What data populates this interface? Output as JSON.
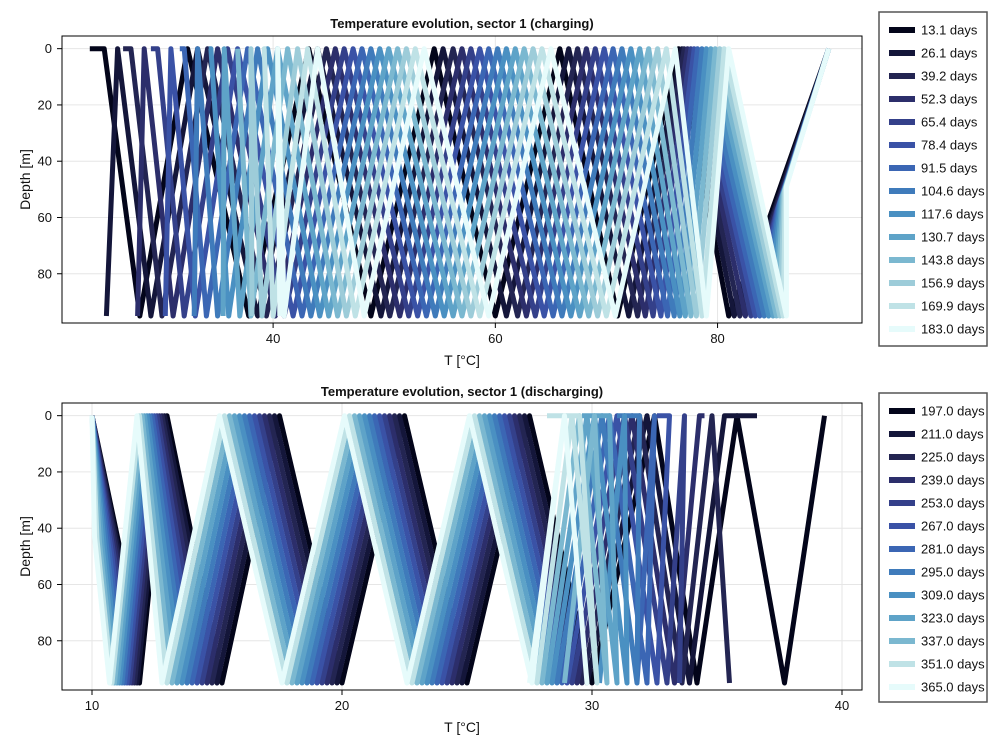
{
  "chart_data": [
    {
      "type": "line",
      "title": "Temperature evolution, sector 1 (charging)",
      "xlabel": "T [°C]",
      "ylabel": "Depth [m]",
      "xlim": [
        21.0,
        93.0
      ],
      "ylim": [
        97.5,
        -4.5
      ],
      "xticks": [
        40,
        60,
        80
      ],
      "yticks": [
        0,
        20,
        40,
        60,
        80
      ],
      "grid": true,
      "legend_position": "outside-right",
      "series": [
        {
          "name": "13.1 days",
          "color": "#03051a",
          "x": [
            90.0,
            84.5,
            81.0,
            76.5,
            71.0,
            65.8,
            60.0,
            54.5,
            48.8,
            43.2,
            37.8,
            32.3,
            28.0,
            24.8,
            23.5
          ],
          "y": [
            0,
            62,
            95,
            0,
            95,
            0,
            95,
            0,
            95,
            0,
            95,
            0,
            95,
            0,
            0
          ]
        },
        {
          "name": "26.1 days",
          "color": "#14163a",
          "x": [
            90.0,
            84.8,
            81.5,
            76.8,
            72.0,
            66.6,
            61.0,
            55.3,
            49.7,
            44.0,
            38.6,
            33.2,
            29.0,
            26.0,
            25.0
          ],
          "y": [
            0,
            61,
            95,
            0,
            95,
            0,
            95,
            0,
            95,
            0,
            95,
            0,
            95,
            0,
            95
          ]
        },
        {
          "name": "39.2 days",
          "color": "#232552",
          "x": [
            90.0,
            85.0,
            82.0,
            77.0,
            72.8,
            67.4,
            62.0,
            56.2,
            50.5,
            44.8,
            39.4,
            34.1,
            30.0,
            27.2,
            26.5
          ],
          "y": [
            0,
            60,
            95,
            0,
            95,
            0,
            95,
            0,
            95,
            0,
            95,
            0,
            95,
            0,
            0
          ]
        },
        {
          "name": "52.3 days",
          "color": "#2c2e6b",
          "x": [
            90.0,
            85.2,
            82.5,
            77.3,
            73.5,
            68.2,
            62.8,
            57.0,
            51.4,
            45.6,
            40.2,
            35.0,
            31.0,
            28.4,
            27.8
          ],
          "y": [
            0,
            59,
            95,
            0,
            95,
            0,
            95,
            0,
            95,
            0,
            95,
            0,
            95,
            0,
            95
          ]
        },
        {
          "name": "65.4 days",
          "color": "#34408a",
          "x": [
            90.0,
            85.3,
            83.0,
            77.6,
            74.2,
            69.0,
            63.6,
            57.8,
            52.2,
            46.4,
            41.0,
            35.9,
            32.0,
            29.6,
            29.0
          ],
          "y": [
            0,
            58,
            95,
            0,
            95,
            0,
            95,
            0,
            95,
            0,
            95,
            0,
            95,
            0,
            0
          ]
        },
        {
          "name": "78.4 days",
          "color": "#3a52a6",
          "x": [
            90.0,
            85.4,
            83.4,
            77.9,
            74.9,
            69.8,
            64.4,
            58.6,
            53.0,
            47.2,
            41.8,
            36.8,
            33.0,
            30.8,
            30.3
          ],
          "y": [
            0,
            57,
            95,
            0,
            95,
            0,
            95,
            0,
            95,
            0,
            95,
            0,
            95,
            0,
            95
          ]
        },
        {
          "name": "91.5 days",
          "color": "#3b66b4",
          "x": [
            90.0,
            85.5,
            83.8,
            78.2,
            75.5,
            70.6,
            65.2,
            59.4,
            53.8,
            48.0,
            42.6,
            37.7,
            34.0,
            32.0,
            31.6
          ],
          "y": [
            0,
            56,
            95,
            0,
            95,
            0,
            95,
            0,
            95,
            0,
            95,
            0,
            95,
            0,
            0
          ]
        },
        {
          "name": "104.6 days",
          "color": "#3f7bbb",
          "x": [
            90.0,
            85.6,
            84.2,
            78.6,
            76.1,
            71.4,
            66.0,
            60.2,
            54.6,
            48.8,
            43.4,
            38.6,
            35.0,
            33.2,
            32.9
          ],
          "y": [
            0,
            55,
            95,
            0,
            95,
            0,
            95,
            0,
            95,
            0,
            95,
            0,
            95,
            0,
            95
          ]
        },
        {
          "name": "117.6 days",
          "color": "#4a90c2",
          "x": [
            90.0,
            85.7,
            84.6,
            79.0,
            76.6,
            72.2,
            66.8,
            61.0,
            55.4,
            49.6,
            44.2,
            39.5,
            36.0,
            34.4,
            34.2
          ],
          "y": [
            0,
            54,
            95,
            0,
            95,
            0,
            95,
            0,
            95,
            0,
            95,
            0,
            95,
            0,
            0
          ]
        },
        {
          "name": "130.7 days",
          "color": "#5ea3c8",
          "x": [
            90.0,
            85.8,
            85.0,
            79.4,
            77.1,
            73.0,
            67.6,
            61.8,
            56.2,
            50.4,
            45.0,
            40.4,
            37.0,
            35.6,
            35.5
          ],
          "y": [
            0,
            53,
            95,
            0,
            95,
            0,
            95,
            0,
            95,
            0,
            95,
            0,
            95,
            0,
            95
          ]
        },
        {
          "name": "143.8 days",
          "color": "#7bb8d0",
          "x": [
            90.0,
            85.9,
            85.3,
            79.8,
            77.6,
            73.8,
            68.4,
            62.6,
            57.0,
            51.2,
            45.8,
            41.3,
            38.0,
            36.8,
            36.8
          ],
          "y": [
            0,
            52,
            95,
            0,
            95,
            0,
            95,
            0,
            95,
            0,
            95,
            0,
            95,
            0,
            0
          ]
        },
        {
          "name": "156.9 days",
          "color": "#9dccd9",
          "x": [
            90.0,
            86.0,
            85.6,
            80.2,
            78.1,
            74.6,
            69.2,
            63.4,
            57.8,
            52.0,
            46.6,
            42.2,
            39.0,
            38.0,
            38.1
          ],
          "y": [
            0,
            51,
            95,
            0,
            95,
            0,
            95,
            0,
            95,
            0,
            95,
            0,
            95,
            0,
            95
          ]
        },
        {
          "name": "169.9 days",
          "color": "#bfe2e6",
          "x": [
            90.0,
            86.1,
            85.9,
            80.6,
            78.6,
            75.4,
            70.0,
            64.2,
            58.6,
            52.8,
            47.4,
            43.1,
            40.0,
            39.2,
            39.4
          ],
          "y": [
            0,
            50,
            95,
            0,
            95,
            0,
            95,
            0,
            95,
            0,
            95,
            0,
            95,
            0,
            0
          ]
        },
        {
          "name": "183.0 days",
          "color": "#e6fbfb",
          "x": [
            90.0,
            86.2,
            86.2,
            81.0,
            79.0,
            76.2,
            70.8,
            65.0,
            59.4,
            53.6,
            48.2,
            44.0,
            41.0,
            40.4,
            40.6
          ],
          "y": [
            0,
            49,
            95,
            0,
            95,
            0,
            95,
            0,
            95,
            0,
            95,
            0,
            95,
            0,
            95
          ]
        }
      ]
    },
    {
      "type": "line",
      "title": "Temperature evolution, sector 1 (discharging)",
      "xlabel": "T [°C]",
      "ylabel": "Depth [m]",
      "xlim": [
        8.8,
        40.8
      ],
      "ylim": [
        97.5,
        -4.5
      ],
      "xticks": [
        10,
        20,
        30,
        40
      ],
      "yticks": [
        0,
        20,
        40,
        60,
        80
      ],
      "grid": true,
      "legend_position": "outside-right",
      "series": [
        {
          "name": "197.0 days",
          "color": "#03051a",
          "x": [
            10.0,
            11.3,
            11.9,
            13.0,
            15.2,
            17.5,
            20.0,
            22.5,
            25.0,
            27.5,
            30.0,
            32.5,
            34.2,
            35.8,
            37.7,
            39.3
          ],
          "y": [
            0,
            55,
            95,
            0,
            95,
            0,
            95,
            0,
            95,
            0,
            95,
            0,
            95,
            0,
            95,
            0
          ]
        },
        {
          "name": "211.0 days",
          "color": "#14163a",
          "x": [
            10.0,
            11.2,
            11.8,
            12.9,
            15.0,
            17.3,
            19.8,
            22.3,
            24.8,
            27.3,
            29.8,
            32.2,
            33.9,
            35.3,
            36.6
          ],
          "y": [
            0,
            54,
            95,
            0,
            95,
            0,
            95,
            0,
            95,
            0,
            95,
            0,
            95,
            0,
            0
          ]
        },
        {
          "name": "225.0 days",
          "color": "#232552",
          "x": [
            10.0,
            11.1,
            11.7,
            12.8,
            14.8,
            17.1,
            19.6,
            22.1,
            24.6,
            27.1,
            29.6,
            31.9,
            33.6,
            34.8,
            35.5
          ],
          "y": [
            0,
            53,
            95,
            0,
            95,
            0,
            95,
            0,
            95,
            0,
            95,
            0,
            95,
            0,
            95
          ]
        },
        {
          "name": "239.0 days",
          "color": "#2c2e6b",
          "x": [
            10.0,
            11.0,
            11.6,
            12.7,
            14.6,
            16.9,
            19.4,
            21.9,
            24.4,
            26.9,
            29.4,
            31.6,
            33.3,
            34.3,
            34.5
          ],
          "y": [
            0,
            52,
            95,
            0,
            95,
            0,
            95,
            0,
            95,
            0,
            95,
            0,
            95,
            0,
            0
          ]
        },
        {
          "name": "253.0 days",
          "color": "#34408a",
          "x": [
            10.0,
            10.9,
            11.5,
            12.6,
            14.4,
            16.7,
            19.2,
            21.7,
            24.2,
            26.7,
            29.2,
            31.3,
            33.0,
            33.7,
            33.5
          ],
          "y": [
            0,
            51,
            95,
            0,
            95,
            0,
            95,
            0,
            95,
            0,
            95,
            0,
            95,
            0,
            95
          ]
        },
        {
          "name": "267.0 days",
          "color": "#3a52a6",
          "x": [
            10.0,
            10.8,
            11.4,
            12.5,
            14.2,
            16.5,
            19.0,
            21.5,
            24.0,
            26.5,
            29.0,
            31.0,
            32.6,
            33.1,
            32.6
          ],
          "y": [
            0,
            50,
            95,
            0,
            95,
            0,
            95,
            0,
            95,
            0,
            95,
            0,
            95,
            0,
            0
          ]
        },
        {
          "name": "281.0 days",
          "color": "#3b66b4",
          "x": [
            10.0,
            10.7,
            11.3,
            12.4,
            14.0,
            16.3,
            18.8,
            21.3,
            23.8,
            26.3,
            28.8,
            30.7,
            32.2,
            32.5,
            31.8
          ],
          "y": [
            0,
            49,
            95,
            0,
            95,
            0,
            95,
            0,
            95,
            0,
            95,
            0,
            95,
            0,
            95
          ]
        },
        {
          "name": "295.0 days",
          "color": "#3f7bbb",
          "x": [
            10.0,
            10.6,
            11.2,
            12.3,
            13.8,
            16.1,
            18.6,
            21.1,
            23.6,
            26.1,
            28.6,
            30.4,
            31.8,
            31.9,
            31.0
          ],
          "y": [
            0,
            48,
            95,
            0,
            95,
            0,
            95,
            0,
            95,
            0,
            95,
            0,
            95,
            0,
            0
          ]
        },
        {
          "name": "309.0 days",
          "color": "#4a90c2",
          "x": [
            10.0,
            10.5,
            11.1,
            12.2,
            13.6,
            15.9,
            18.4,
            20.9,
            23.4,
            25.9,
            28.4,
            30.1,
            31.4,
            31.3,
            30.3
          ],
          "y": [
            0,
            47,
            95,
            0,
            95,
            0,
            95,
            0,
            95,
            0,
            95,
            0,
            95,
            0,
            95
          ]
        },
        {
          "name": "323.0 days",
          "color": "#5ea3c8",
          "x": [
            10.0,
            10.4,
            11.0,
            12.1,
            13.4,
            15.7,
            18.2,
            20.7,
            23.2,
            25.7,
            28.2,
            29.8,
            31.0,
            30.7,
            29.6
          ],
          "y": [
            0,
            46,
            95,
            0,
            95,
            0,
            95,
            0,
            95,
            0,
            95,
            0,
            95,
            0,
            0
          ]
        },
        {
          "name": "337.0 days",
          "color": "#7bb8d0",
          "x": [
            10.0,
            10.3,
            10.9,
            12.0,
            13.2,
            15.5,
            18.0,
            20.5,
            23.0,
            25.5,
            28.0,
            29.5,
            30.6,
            30.1,
            28.9
          ],
          "y": [
            0,
            45,
            95,
            0,
            95,
            0,
            95,
            0,
            95,
            0,
            95,
            0,
            95,
            0,
            95
          ]
        },
        {
          "name": "351.0 days",
          "color": "#bfe2e6",
          "x": [
            10.0,
            10.2,
            10.8,
            11.9,
            13.0,
            15.3,
            17.8,
            20.3,
            22.8,
            25.3,
            27.8,
            29.2,
            30.2,
            29.5,
            28.2
          ],
          "y": [
            0,
            44,
            95,
            0,
            95,
            0,
            95,
            0,
            95,
            0,
            95,
            0,
            95,
            0,
            0
          ]
        },
        {
          "name": "365.0 days",
          "color": "#e6fbfb",
          "x": [
            10.0,
            10.1,
            10.7,
            11.8,
            12.8,
            15.1,
            17.6,
            20.1,
            22.6,
            25.1,
            27.6,
            28.9,
            29.8,
            28.9,
            27.5
          ],
          "y": [
            0,
            43,
            95,
            0,
            95,
            0,
            95,
            0,
            95,
            0,
            95,
            0,
            95,
            0,
            95
          ]
        }
      ]
    }
  ]
}
